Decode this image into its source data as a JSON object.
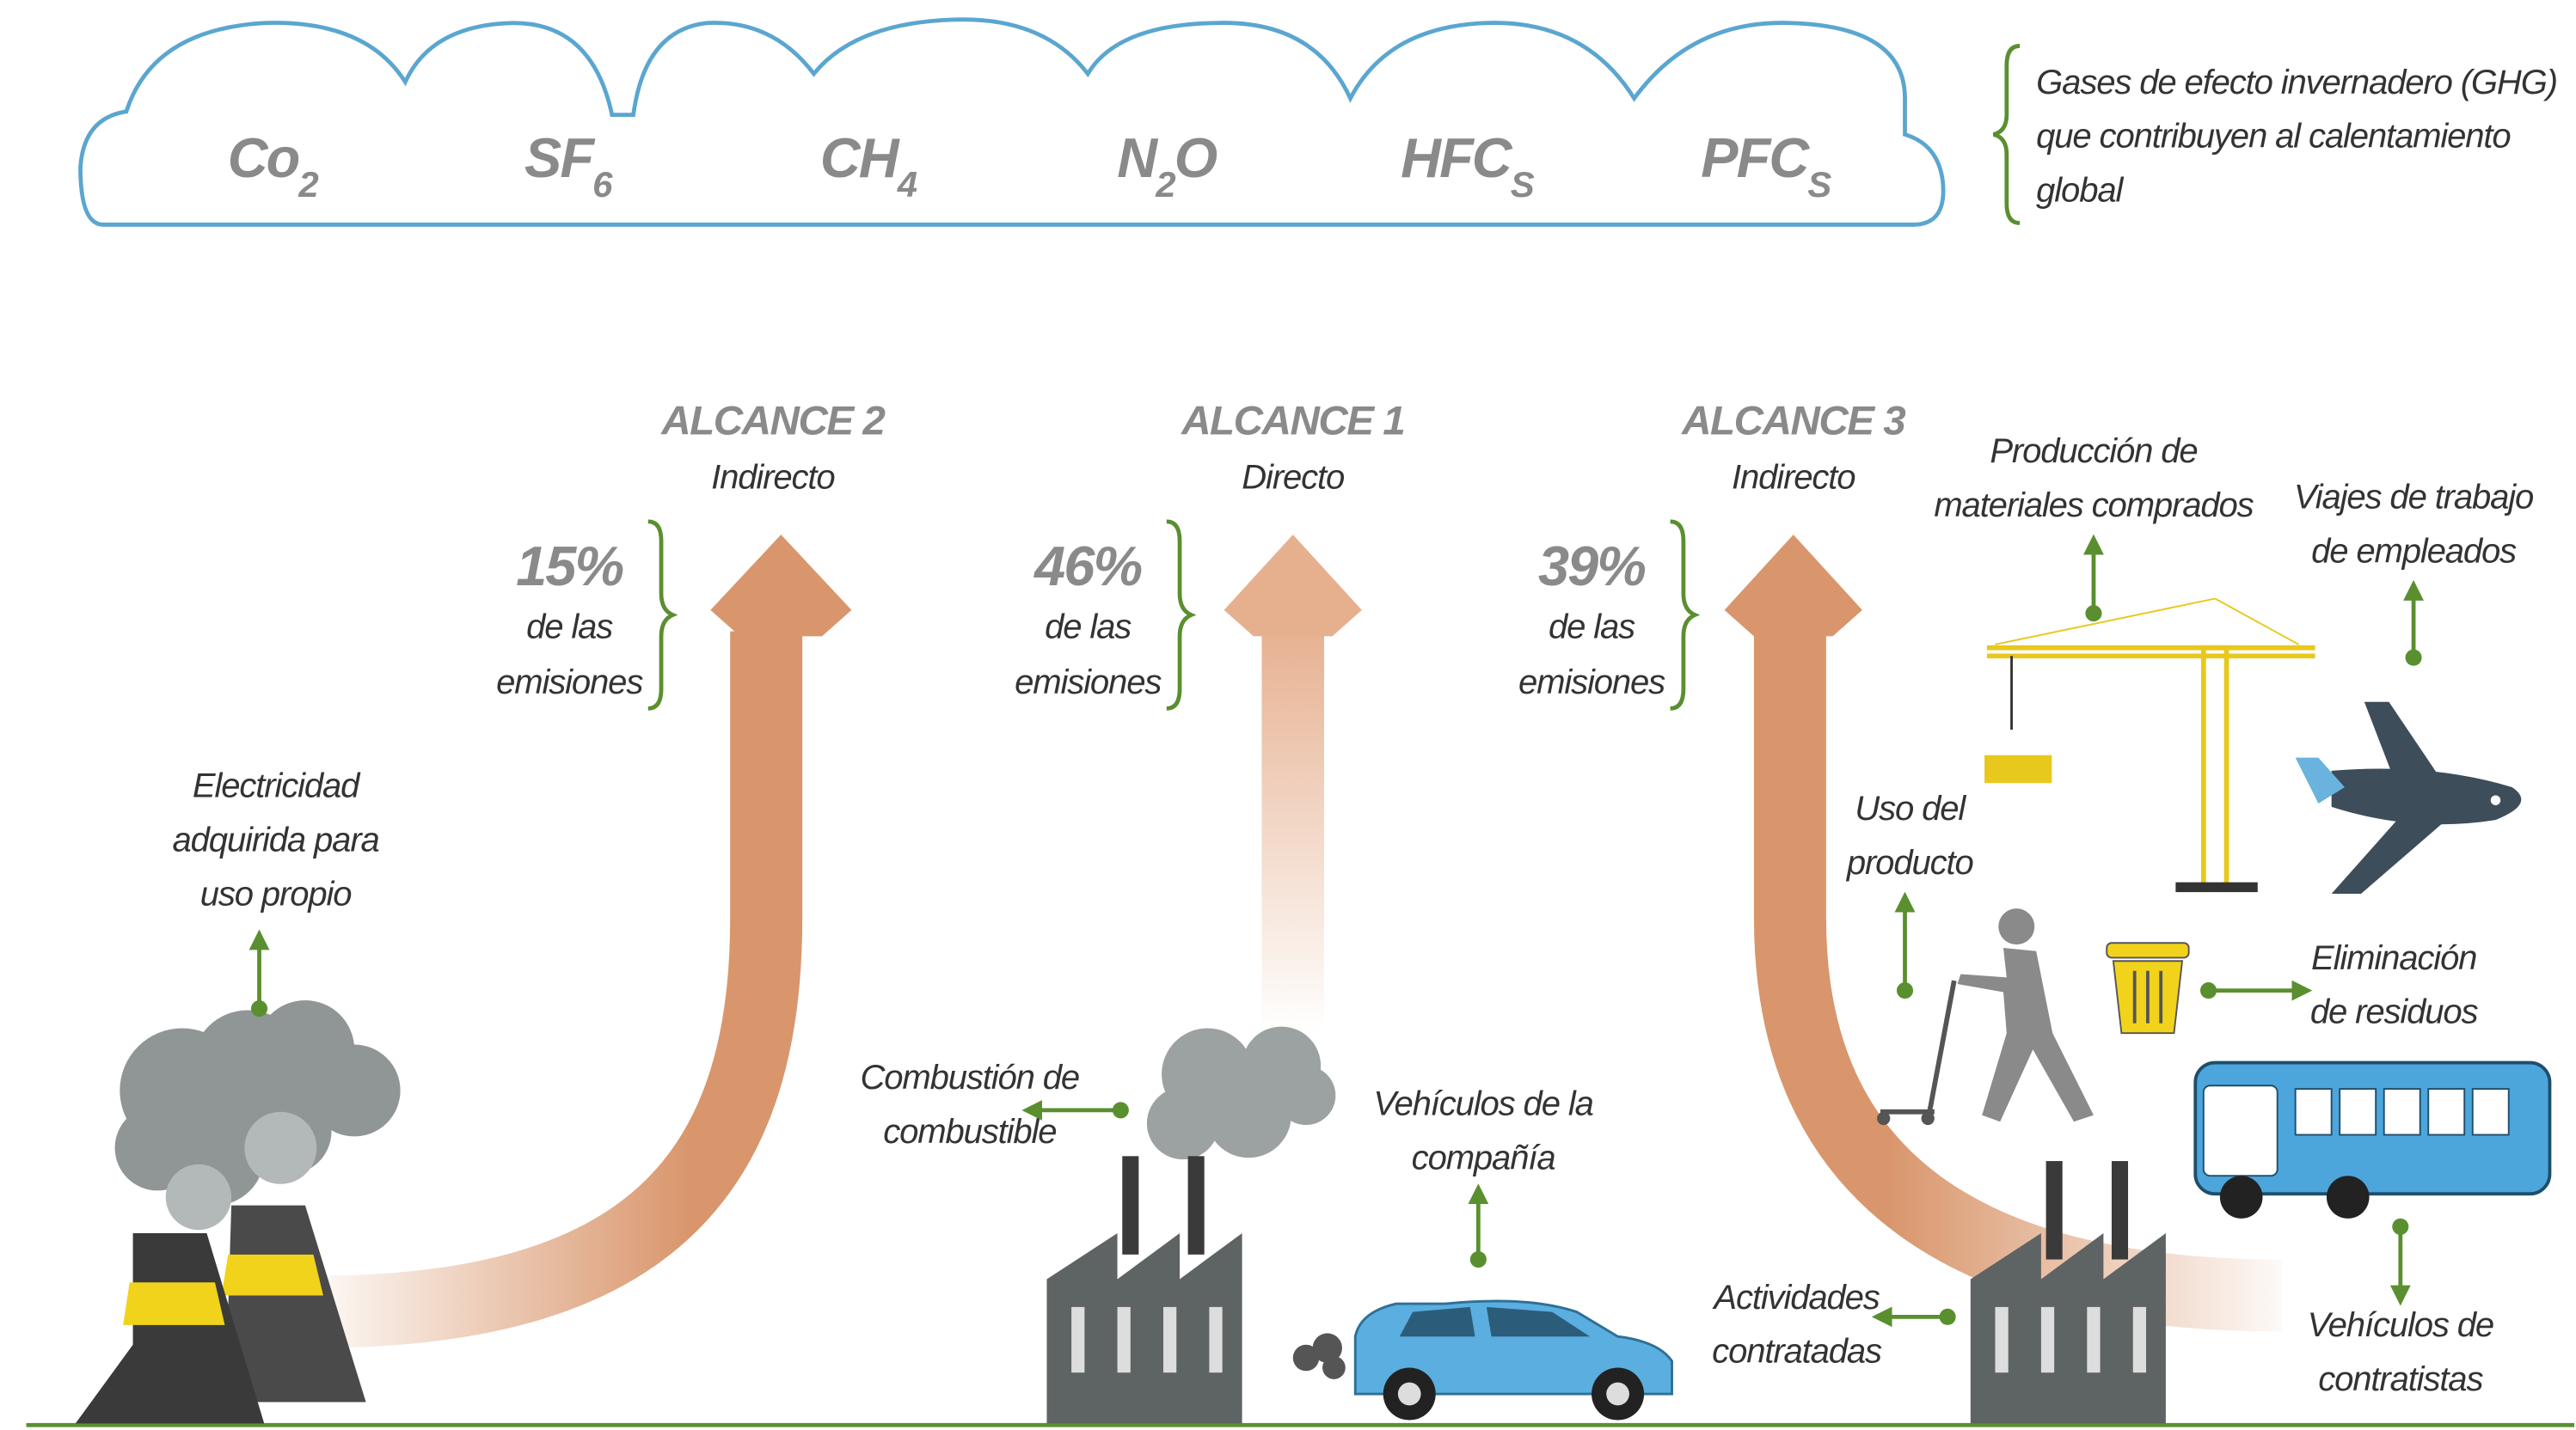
{
  "gases": {
    "items": [
      {
        "text": "Co",
        "sub": "2"
      },
      {
        "text": "SF",
        "sub": "6"
      },
      {
        "text": "CH",
        "sub": "4"
      },
      {
        "text": "N",
        "sub": "2",
        "after": "O"
      },
      {
        "text": "HFC",
        "sub": "S"
      },
      {
        "text": "PFC",
        "sub": "S"
      }
    ],
    "description": [
      "Gases de efecto invernadero (GHG)",
      "que contribuyen al calentamiento",
      "global"
    ]
  },
  "scopes": [
    {
      "title": "ALCANCE 2",
      "subtitle": "Indirecto",
      "percent": "15%",
      "share_label": [
        "de las",
        "emisiones"
      ]
    },
    {
      "title": "ALCANCE 1",
      "subtitle": "Directo",
      "percent": "46%",
      "share_label": [
        "de las",
        "emisiones"
      ]
    },
    {
      "title": "ALCANCE 3",
      "subtitle": "Indirecto",
      "percent": "39%",
      "share_label": [
        "de las",
        "emisiones"
      ]
    }
  ],
  "sources": [
    {
      "label": [
        "Electricidad",
        "adquirida para",
        "uso propio"
      ]
    },
    {
      "label": [
        "Combustión de",
        "combustible"
      ]
    },
    {
      "label": [
        "Vehículos de la",
        "compañía"
      ]
    },
    {
      "label": [
        "Producción de",
        "materiales comprados"
      ]
    },
    {
      "label": [
        "Viajes de trabajo",
        "de empleados"
      ]
    },
    {
      "label": [
        "Uso del",
        "producto"
      ]
    },
    {
      "label": [
        "Eliminación",
        "de residuos"
      ]
    },
    {
      "label": [
        "Actividades",
        "contratadas"
      ]
    },
    {
      "label": [
        "Vehículos de",
        "contratistas"
      ]
    }
  ]
}
